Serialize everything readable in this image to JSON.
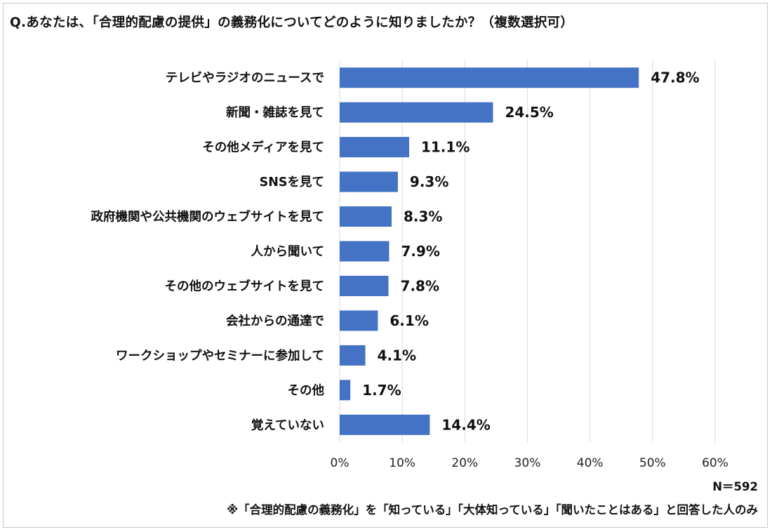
{
  "chart_data": {
    "type": "bar",
    "orientation": "horizontal",
    "title": "Q.あなたは、「合理的配慮の提供」の義務化についてどのように知りましたか？（複数選択可）",
    "categories": [
      "テレビやラジオのニュースで",
      "新聞・雑誌を見て",
      "その他メディアを見て",
      "SNSを見て",
      "政府機関や公共機関のウェブサイトを見て",
      "人から聞いて",
      "その他のウェブサイトを見て",
      "会社からの通達で",
      "ワークショップやセミナーに参加して",
      "その他",
      "覚えていない"
    ],
    "values": [
      47.8,
      24.5,
      11.1,
      9.3,
      8.3,
      7.9,
      7.8,
      6.1,
      4.1,
      1.7,
      14.4
    ],
    "value_labels": [
      "47.8%",
      "24.5%",
      "11.1%",
      "9.3%",
      "8.3%",
      "7.9%",
      "7.8%",
      "6.1%",
      "4.1%",
      "1.7%",
      "14.4%"
    ],
    "xlim": [
      0,
      60
    ],
    "x_ticks": [
      "0%",
      "10%",
      "20%",
      "30%",
      "40%",
      "50%",
      "60%"
    ],
    "grid": true,
    "bar_color": "#4472C4",
    "grid_color": "#d9d9d9",
    "sample_size": "N＝592",
    "footnote": "※「合理的配慮の義務化」を「知っている」「大体知っている」「聞いたことはある」と回答した人のみ"
  }
}
